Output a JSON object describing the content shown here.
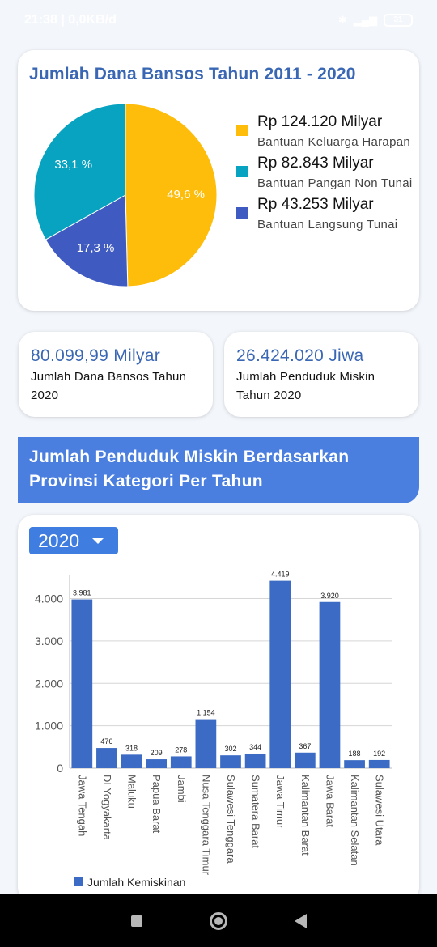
{
  "status_bar": {
    "time": "21:38 | 0,0KB/d",
    "battery": "31"
  },
  "pie_card": {
    "title": "Jumlah Dana Bansos Tahun 2011 - 2020",
    "legend": [
      {
        "amount": "Rp 124.120 Milyar",
        "label": "Bantuan Keluarga Harapan",
        "color": "#fdbd0a"
      },
      {
        "amount": "Rp 82.843 Milyar",
        "label": "Bantuan Pangan Non Tunai",
        "color": "#08a3c0"
      },
      {
        "amount": "Rp 43.253 Milyar",
        "label": "Bantuan Langsung Tunai",
        "color": "#3f5ac0"
      }
    ]
  },
  "stats": {
    "card1": {
      "value": "80.099,99 Milyar",
      "label": "Jumlah Dana Bansos Tahun 2020"
    },
    "card2": {
      "value": "26.424.020 Jiwa",
      "label": "Jumlah Penduduk Miskin Tahun 2020"
    }
  },
  "section_title": "Jumlah Penduduk Miskin Berdasarkan Provinsi Kategori Per Tahun",
  "bar_card": {
    "year_selected": "2020"
  },
  "chart_data": [
    {
      "type": "pie",
      "slices": [
        {
          "name": "Bantuan Keluarga Harapan",
          "value": 49.6,
          "label": "49,6 %",
          "color": "#fdbd0a"
        },
        {
          "name": "Bantuan Langsung Tunai",
          "value": 17.3,
          "label": "17,3 %",
          "color": "#3f5ac0"
        },
        {
          "name": "Bantuan Pangan Non Tunai",
          "value": 33.1,
          "label": "33,1 %",
          "color": "#08a3c0"
        }
      ]
    },
    {
      "type": "bar",
      "categories": [
        "Jawa Tengah",
        "DI Yogyakarta",
        "Maluku",
        "Papua Barat",
        "Jambi",
        "Nusa Tenggara Timur",
        "Sulawesi Tenggara",
        "Sumatera Barat",
        "Jawa Timur",
        "Kalimantan Barat",
        "Jawa Barat",
        "Kalimantan Selatan",
        "Sulawesi Utara"
      ],
      "series": [
        {
          "name": "Jumlah Kemiskinan",
          "values": [
            3981,
            476,
            318,
            209,
            278,
            1154,
            302,
            344,
            4419,
            367,
            3920,
            188,
            192
          ],
          "color": "#3b6bc4"
        }
      ],
      "value_labels": [
        "3.981",
        "476",
        "318",
        "209",
        "278",
        "1.154",
        "302",
        "344",
        "4.419",
        "367",
        "3.920",
        "188",
        "192"
      ],
      "y_ticks": [
        0,
        1000,
        2000,
        3000,
        4000
      ],
      "y_tick_labels": [
        "0",
        "1.000",
        "2.000",
        "3.000",
        "4.000"
      ],
      "ylim": [
        0,
        4450
      ],
      "grid": true,
      "legend": "bottom-left"
    }
  ]
}
